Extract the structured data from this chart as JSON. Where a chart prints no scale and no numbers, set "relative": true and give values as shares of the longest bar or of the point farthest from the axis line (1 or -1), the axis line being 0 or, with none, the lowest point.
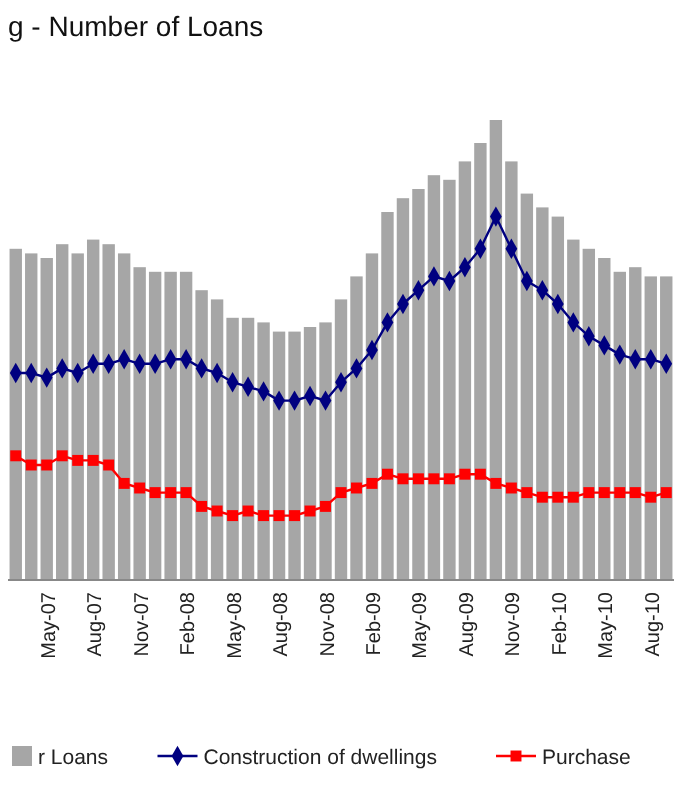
{
  "chart_data": {
    "type": "bar",
    "title": "g - Number of Loans",
    "relative": true,
    "legend": "bottom",
    "categories": [
      null,
      null,
      "May-07",
      null,
      null,
      "Aug-07",
      null,
      null,
      "Nov-07",
      null,
      null,
      "Feb-08",
      null,
      null,
      "May-08",
      null,
      null,
      "Aug-08",
      null,
      null,
      "Nov-08",
      null,
      null,
      "Feb-09",
      null,
      null,
      "May-09",
      null,
      null,
      "Aug-09",
      null,
      null,
      "Nov-09",
      null,
      null,
      "Feb-10",
      null,
      null,
      "May-10",
      null,
      null,
      "Aug-10",
      null
    ],
    "series": [
      {
        "name": "r Loans",
        "color": "#a6a6a6",
        "values": [
          0.72,
          0.71,
          0.7,
          0.73,
          0.71,
          0.74,
          0.73,
          0.71,
          0.68,
          0.67,
          0.67,
          0.67,
          0.63,
          0.61,
          0.57,
          0.57,
          0.56,
          0.54,
          0.54,
          0.55,
          0.56,
          0.61,
          0.66,
          0.71,
          0.8,
          0.83,
          0.85,
          0.88,
          0.87,
          0.91,
          0.95,
          1,
          0.91,
          0.84,
          0.81,
          0.79,
          0.74,
          0.72,
          0.7,
          0.67,
          0.68,
          0.66,
          0.66
        ]
      },
      {
        "name": "Construction of dwellings",
        "type": "line",
        "marker": "diamond",
        "color": "#000080",
        "values": [
          0.45,
          0.45,
          0.44,
          0.46,
          0.45,
          0.47,
          0.47,
          0.48,
          0.47,
          0.47,
          0.48,
          0.48,
          0.46,
          0.45,
          0.43,
          0.42,
          0.41,
          0.39,
          0.39,
          0.4,
          0.39,
          0.43,
          0.46,
          0.5,
          0.56,
          0.6,
          0.63,
          0.66,
          0.65,
          0.68,
          0.72,
          0.79,
          0.72,
          0.65,
          0.63,
          0.6,
          0.56,
          0.53,
          0.51,
          0.49,
          0.48,
          0.48,
          0.47
        ]
      },
      {
        "name": "Purchase",
        "type": "line",
        "marker": "square",
        "color": "#ff0000",
        "values": [
          0.27,
          0.25,
          0.25,
          0.27,
          0.26,
          0.26,
          0.25,
          0.21,
          0.2,
          0.19,
          0.19,
          0.19,
          0.16,
          0.15,
          0.14,
          0.15,
          0.14,
          0.14,
          0.14,
          0.15,
          0.16,
          0.19,
          0.2,
          0.21,
          0.23,
          0.22,
          0.22,
          0.22,
          0.22,
          0.23,
          0.23,
          0.21,
          0.2,
          0.19,
          0.18,
          0.18,
          0.18,
          0.19,
          0.19,
          0.19,
          0.19,
          0.18,
          0.19
        ]
      }
    ]
  }
}
